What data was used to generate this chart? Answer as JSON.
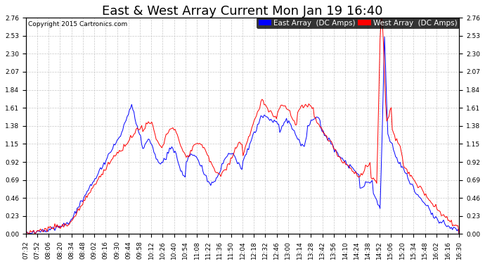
{
  "title": "East & West Array Current Mon Jan 19 16:40",
  "copyright": "Copyright 2015 Cartronics.com",
  "east_label": "East Array  (DC Amps)",
  "west_label": "West Array  (DC Amps)",
  "east_color": "#0000ff",
  "west_color": "#ff0000",
  "bg_color": "#ffffff",
  "grid_color": "#c8c8c8",
  "ylim": [
    0.0,
    2.76
  ],
  "yticks": [
    0.0,
    0.23,
    0.46,
    0.69,
    0.92,
    1.15,
    1.38,
    1.61,
    1.84,
    2.07,
    2.3,
    2.53,
    2.76
  ],
  "xtick_labels": [
    "07:32",
    "07:52",
    "08:06",
    "08:20",
    "08:34",
    "08:48",
    "09:02",
    "09:16",
    "09:30",
    "09:44",
    "09:58",
    "10:12",
    "10:26",
    "10:40",
    "10:54",
    "11:08",
    "11:22",
    "11:36",
    "11:50",
    "12:04",
    "12:18",
    "12:32",
    "12:46",
    "13:00",
    "13:14",
    "13:28",
    "13:42",
    "13:56",
    "14:10",
    "14:24",
    "14:38",
    "14:52",
    "15:06",
    "15:20",
    "15:34",
    "15:48",
    "16:02",
    "16:16",
    "16:30"
  ],
  "title_fontsize": 13,
  "tick_fontsize": 6.5,
  "legend_fontsize": 7.5,
  "copyright_fontsize": 6.5,
  "linewidth": 0.7
}
